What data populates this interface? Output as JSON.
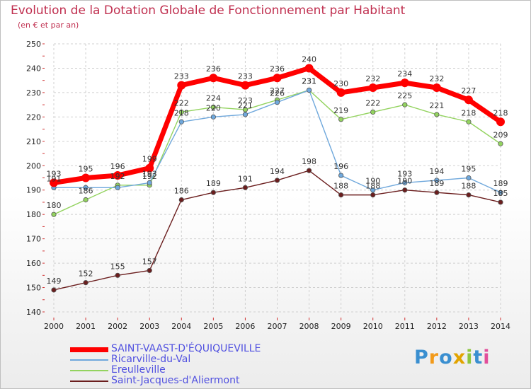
{
  "header": {
    "title": "Evolution de la Dotation Globale de Fonctionnement par Habitant",
    "subtitle": "(en € et par an)"
  },
  "logo": {
    "text": "Proxiti"
  },
  "chart_data": {
    "type": "line",
    "title": "Evolution de la Dotation Globale de Fonctionnement par Habitant",
    "subtitle": "(en € et par an)",
    "xlabel": "",
    "ylabel": "",
    "x": [
      "2000",
      "2001",
      "2002",
      "2003",
      "2004",
      "2005",
      "2006",
      "2007",
      "2008",
      "2009",
      "2010",
      "2011",
      "2012",
      "2013",
      "2014"
    ],
    "ylim": [
      140,
      250
    ],
    "yticks": [
      140,
      150,
      160,
      170,
      180,
      190,
      200,
      210,
      220,
      230,
      240,
      250
    ],
    "grid": {
      "horizontal": true,
      "vertical": true,
      "style": "dashed"
    },
    "legend_position": "bottom-left",
    "series": [
      {
        "name": "SAINT-VAAST-D'ÉQUIQUEVILLE",
        "color": "#ff0000",
        "values": [
          193,
          195,
          196,
          199,
          233,
          236,
          233,
          236,
          240,
          230,
          232,
          234,
          232,
          227,
          218
        ],
        "labels": [
          "193",
          "195",
          "196",
          "199",
          "233",
          "236",
          "233",
          "236",
          "240",
          "230",
          "232",
          "234",
          "232",
          "227",
          "218"
        ]
      },
      {
        "name": "Ricarville-du-Val",
        "color": "#6fa8dc",
        "values": [
          191,
          191,
          191,
          193,
          218,
          220,
          221,
          226,
          231,
          196,
          190,
          193,
          194,
          195,
          189
        ],
        "labels": [
          "191",
          "",
          "",
          "193",
          "218",
          "220",
          "221",
          "226",
          "231",
          "196",
          "190",
          "193",
          "194",
          "195",
          "189"
        ]
      },
      {
        "name": "Ereulleville",
        "color": "#93d35f",
        "values": [
          180,
          186,
          192,
          192,
          222,
          224,
          223,
          227,
          231,
          219,
          222,
          225,
          221,
          218,
          209
        ],
        "labels": [
          "180",
          "186",
          "192",
          "192",
          "222",
          "224",
          "223",
          "227",
          "231",
          "219",
          "222",
          "225",
          "221",
          "218",
          "209"
        ]
      },
      {
        "name": "Saint-Jacques-d'Aliermont",
        "color": "#6b1e1e",
        "values": [
          149,
          152,
          155,
          157,
          186,
          189,
          191,
          194,
          198,
          188,
          188,
          190,
          189,
          188,
          185
        ],
        "labels": [
          "149",
          "152",
          "155",
          "157",
          "186",
          "189",
          "191",
          "194",
          "198",
          "188",
          "188",
          "190",
          "189",
          "188",
          "185"
        ]
      }
    ]
  }
}
